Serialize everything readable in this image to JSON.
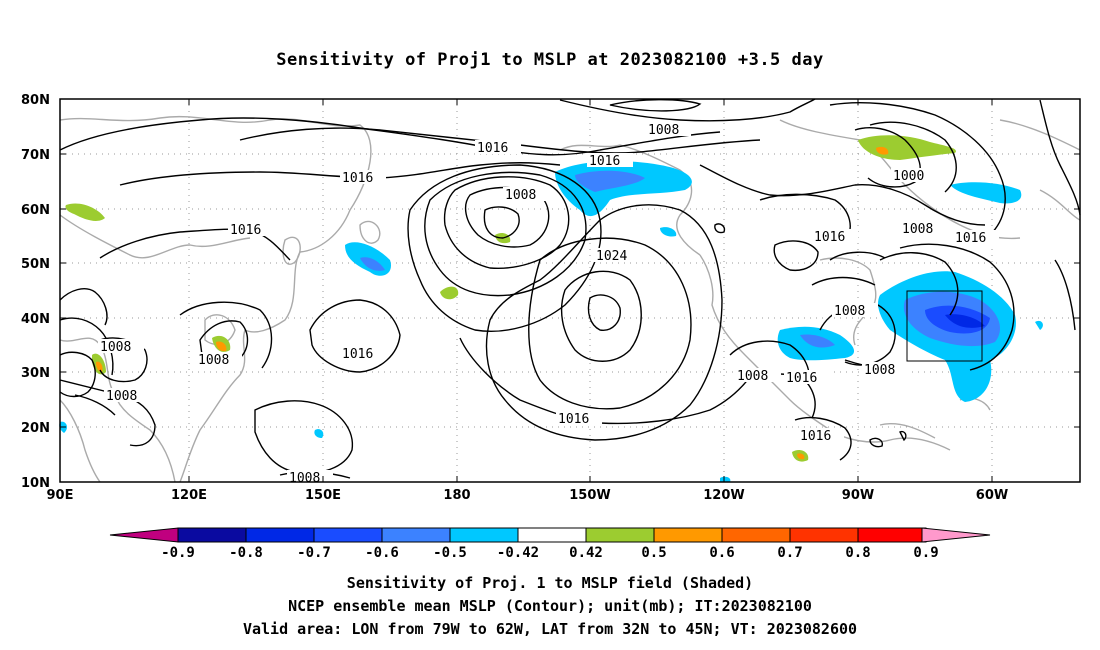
{
  "title": "Sensitivity of Proj1 to MSLP at 2023082100 +3.5 day",
  "map": {
    "lat_labels": [
      "80N",
      "70N",
      "60N",
      "50N",
      "40N",
      "30N",
      "20N",
      "10N"
    ],
    "lon_labels": [
      "90E",
      "120E",
      "150E",
      "180",
      "150W",
      "120W",
      "90W",
      "60W"
    ],
    "contour_labels": [
      "1016",
      "1008",
      "1016",
      "1016",
      "1008",
      "1016",
      "1024",
      "1016",
      "1008",
      "1008",
      "1008",
      "1016",
      "1008",
      "1016",
      "1008",
      "1016",
      "1016",
      "1000",
      "1008",
      "1016",
      "1008",
      "1008"
    ],
    "land_color": "#aaaaaa",
    "contour_color": "#000000"
  },
  "colorbar": {
    "colors": [
      "#c0007f",
      "#0a0aa0",
      "#0028e6",
      "#1a4cff",
      "#3c82ff",
      "#00c8ff",
      "#ffffff",
      "#9ccc30",
      "#ff9900",
      "#ff6600",
      "#ff3300",
      "#ff0000",
      "#ff99cc"
    ],
    "tick_labels": [
      "-0.9",
      "-0.8",
      "-0.7",
      "-0.6",
      "-0.5",
      "-0.42",
      "0.42",
      "0.5",
      "0.6",
      "0.7",
      "0.8",
      "0.9"
    ]
  },
  "captions": {
    "line1": "Sensitivity of Proj. 1 to MSLP field (Shaded)",
    "line2": "NCEP ensemble mean MSLP (Contour); unit(mb); IT:2023082100",
    "line3": "Valid area: LON from 79W to 62W, LAT from 32N to 45N; VT: 2023082600"
  }
}
